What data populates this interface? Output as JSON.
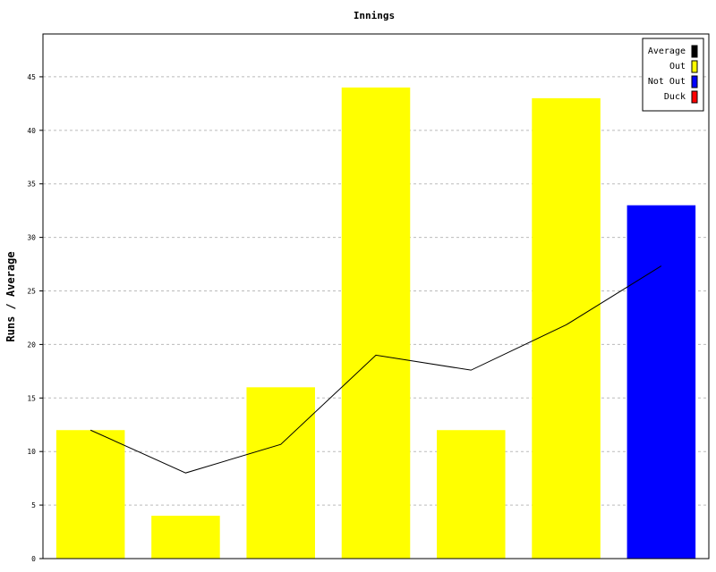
{
  "chart_data": {
    "type": "bar",
    "title": "Innings",
    "xlabel": "",
    "ylabel": "Runs / Average",
    "ylim": [
      0,
      49
    ],
    "yticks": [
      0,
      5,
      10,
      15,
      20,
      25,
      30,
      35,
      40,
      45
    ],
    "grid": true,
    "legend_position": "top-right",
    "legend": [
      {
        "label": "Average",
        "color": "#000000"
      },
      {
        "label": "Out",
        "color": "#ffff00"
      },
      {
        "label": "Not Out",
        "color": "#0000ff"
      },
      {
        "label": "Duck",
        "color": "#ff0000"
      }
    ],
    "bars": [
      {
        "value": 12,
        "status": "Out"
      },
      {
        "value": 4,
        "status": "Out"
      },
      {
        "value": 16,
        "status": "Out"
      },
      {
        "value": 44,
        "status": "Out"
      },
      {
        "value": 12,
        "status": "Out"
      },
      {
        "value": 43,
        "status": "Out"
      },
      {
        "value": 33,
        "status": "Not Out"
      }
    ],
    "series": [
      {
        "name": "Average",
        "type": "line",
        "values": [
          12,
          8,
          10.67,
          19,
          17.6,
          21.83,
          27.33
        ]
      }
    ]
  }
}
